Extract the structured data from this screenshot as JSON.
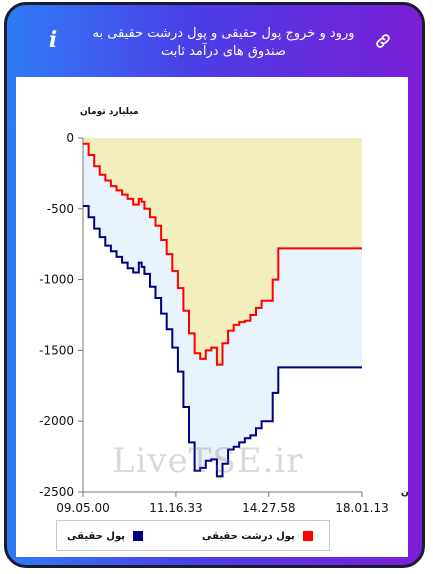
{
  "header": {
    "title": "ورود و خروج پول حقیقی و پول درشت حقیقی به صندوق های درآمد ثابت",
    "link_icon": "link-icon",
    "info_icon": "info-icon",
    "info_glyph": "i"
  },
  "watermark": "LiveTSE.ir",
  "chart_data": {
    "type": "line",
    "title": "",
    "ylabel": "میلیارد تومان",
    "xlabel": "زمان",
    "ylim": [
      -2500,
      0
    ],
    "yticks": [
      0,
      -500,
      -1000,
      -1500,
      -2000,
      -2500
    ],
    "xticks": [
      "09.05.00",
      "11.16.33",
      "14.27.58",
      "18.01.13"
    ],
    "xticks_pos": [
      0,
      0.333,
      0.666,
      1
    ],
    "x": [
      0,
      0.02,
      0.04,
      0.06,
      0.08,
      0.1,
      0.12,
      0.14,
      0.16,
      0.18,
      0.2,
      0.21,
      0.22,
      0.24,
      0.26,
      0.28,
      0.3,
      0.32,
      0.34,
      0.36,
      0.38,
      0.4,
      0.42,
      0.44,
      0.46,
      0.48,
      0.5,
      0.52,
      0.54,
      0.56,
      0.58,
      0.6,
      0.62,
      0.64,
      0.66,
      0.68,
      0.7,
      0.72,
      0.74,
      1
    ],
    "series": [
      {
        "name": "پول حقیقی",
        "color": "#000080",
        "values": [
          -480,
          -560,
          -640,
          -700,
          -760,
          -800,
          -840,
          -880,
          -920,
          -950,
          -880,
          -910,
          -960,
          -1050,
          -1130,
          -1240,
          -1350,
          -1480,
          -1650,
          -1900,
          -2150,
          -2350,
          -2330,
          -2280,
          -2270,
          -2390,
          -2300,
          -2200,
          -2180,
          -2150,
          -2120,
          -2100,
          -2050,
          -2000,
          -2000,
          -1800,
          -1620,
          -1620,
          -1620,
          -1620
        ]
      },
      {
        "name": "پول درشت حقیقی",
        "color": "#ff0000",
        "values": [
          -40,
          -120,
          -200,
          -260,
          -300,
          -340,
          -370,
          -400,
          -430,
          -470,
          -430,
          -450,
          -500,
          -560,
          -620,
          -720,
          -820,
          -940,
          -1060,
          -1220,
          -1380,
          -1520,
          -1560,
          -1500,
          -1480,
          -1600,
          -1450,
          -1360,
          -1320,
          -1300,
          -1290,
          -1250,
          -1200,
          -1150,
          -1150,
          -1000,
          -780,
          -780,
          -780,
          -780
        ]
      }
    ],
    "fills": {
      "above_red": "#f3eebe",
      "between": "#e8f3fb"
    },
    "legend": "bottom"
  }
}
